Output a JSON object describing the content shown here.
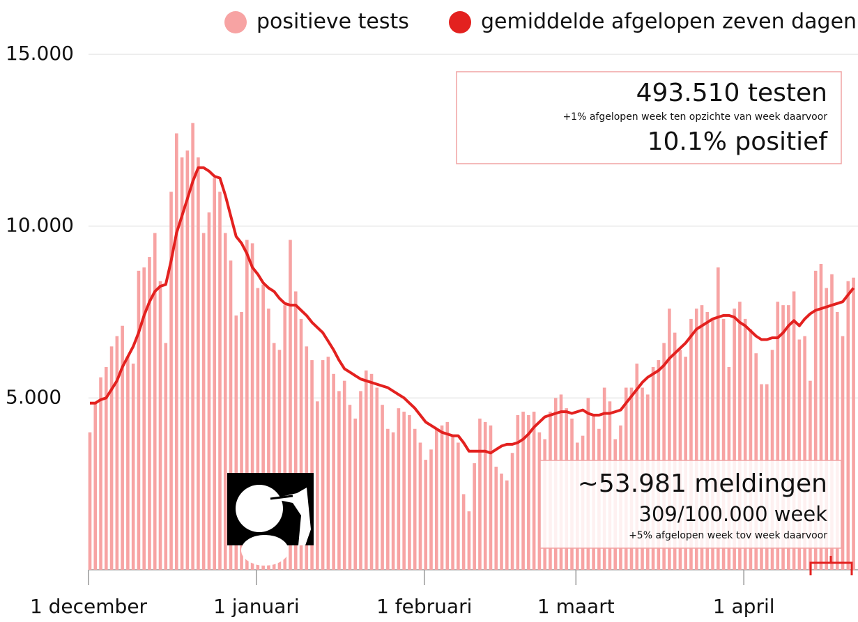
{
  "chart_data": {
    "type": "bar",
    "categories": [
      "1 december",
      null,
      null,
      null,
      null,
      null,
      null,
      null,
      null,
      null,
      null,
      null,
      null,
      null,
      null,
      null,
      null,
      null,
      null,
      null,
      null,
      null,
      null,
      null,
      null,
      null,
      null,
      null,
      null,
      null,
      null,
      "1 januari",
      null,
      null,
      null,
      null,
      null,
      null,
      null,
      null,
      null,
      null,
      null,
      null,
      null,
      null,
      null,
      null,
      null,
      null,
      null,
      null,
      null,
      null,
      null,
      null,
      null,
      null,
      null,
      null,
      null,
      null,
      "1 februari",
      null,
      null,
      null,
      null,
      null,
      null,
      null,
      null,
      null,
      null,
      null,
      null,
      null,
      null,
      null,
      null,
      null,
      null,
      null,
      null,
      null,
      null,
      null,
      null,
      null,
      null,
      null,
      "1 maart",
      null,
      null,
      null,
      null,
      null,
      null,
      null,
      null,
      null,
      null,
      null,
      null,
      null,
      null,
      null,
      null,
      null,
      null,
      null,
      null,
      null,
      null,
      null,
      null,
      null,
      null,
      null,
      null,
      null,
      null,
      "1 april",
      null,
      null,
      null,
      null,
      null,
      null,
      null,
      null,
      null,
      null,
      null,
      null,
      null,
      null,
      null,
      null,
      null,
      null,
      null,
      null
    ],
    "series": [
      {
        "name": "positieve tests",
        "type": "bar",
        "color": "#f7a3a3",
        "values": [
          4000,
          4850,
          5600,
          5900,
          6500,
          6800,
          7100,
          6200,
          6000,
          8700,
          8800,
          9100,
          9800,
          8400,
          6600,
          11000,
          12700,
          12000,
          12200,
          13000,
          12000,
          9800,
          10400,
          11400,
          11000,
          9800,
          9000,
          7400,
          7500,
          9600,
          9500,
          8200,
          8300,
          7600,
          6600,
          6400,
          7700,
          9600,
          8100,
          7300,
          6500,
          6100,
          4900,
          6100,
          6200,
          5700,
          5200,
          5500,
          4800,
          4400,
          5200,
          5800,
          5700,
          5300,
          4800,
          4100,
          4000,
          4700,
          4600,
          4500,
          4100,
          3700,
          3200,
          3500,
          4100,
          4200,
          4300,
          3900,
          3700,
          2200,
          1700,
          3100,
          4400,
          4300,
          4200,
          3000,
          2800,
          2600,
          3400,
          4500,
          4600,
          4500,
          4600,
          4000,
          3800,
          4600,
          5000,
          5100,
          4700,
          4400,
          3700,
          3900,
          5000,
          4500,
          4100,
          5300,
          4900,
          3800,
          4200,
          5300,
          5300,
          6000,
          5300,
          5100,
          5900,
          6100,
          6600,
          7600,
          6900,
          6400,
          6200,
          7300,
          7600,
          7700,
          7500,
          7300,
          8800,
          7300,
          5900,
          7600,
          7800,
          7300,
          7000,
          6300,
          5400,
          5400,
          6400,
          7800,
          7700,
          7700,
          8100,
          6700,
          6800,
          5500,
          8700,
          8900,
          8200,
          8600,
          7500,
          6800,
          8400,
          8500
        ]
      },
      {
        "name": "gemiddelde afgelopen zeven dagen",
        "type": "line",
        "color": "#e3211f",
        "values": [
          4850,
          4850,
          4950,
          5000,
          5250,
          5500,
          5900,
          6200,
          6500,
          6900,
          7400,
          7800,
          8100,
          8250,
          8300,
          9000,
          9800,
          10300,
          10800,
          11300,
          11700,
          11700,
          11600,
          11450,
          11400,
          10900,
          10300,
          9700,
          9500,
          9200,
          8800,
          8600,
          8350,
          8200,
          8100,
          7900,
          7750,
          7700,
          7700,
          7550,
          7400,
          7200,
          7050,
          6900,
          6650,
          6400,
          6100,
          5850,
          5750,
          5650,
          5550,
          5500,
          5450,
          5400,
          5350,
          5300,
          5200,
          5100,
          5000,
          4850,
          4700,
          4500,
          4300,
          4200,
          4100,
          4000,
          3950,
          3900,
          3900,
          3700,
          3450,
          3450,
          3450,
          3450,
          3400,
          3500,
          3600,
          3650,
          3650,
          3700,
          3800,
          3950,
          4150,
          4300,
          4450,
          4500,
          4550,
          4600,
          4600,
          4550,
          4600,
          4650,
          4550,
          4500,
          4500,
          4550,
          4550,
          4600,
          4650,
          4850,
          5050,
          5250,
          5450,
          5600,
          5700,
          5800,
          5950,
          6150,
          6300,
          6450,
          6600,
          6800,
          7000,
          7100,
          7200,
          7300,
          7350,
          7400,
          7400,
          7350,
          7200,
          7100,
          6950,
          6800,
          6700,
          6700,
          6750,
          6750,
          6900,
          7100,
          7250,
          7100,
          7300,
          7450,
          7550,
          7600,
          7650,
          7700,
          7750,
          7800,
          8000,
          8200
        ]
      }
    ],
    "ylim": [
      0,
      15000
    ],
    "yticks": [
      {
        "value": 5000,
        "label": "5.000"
      },
      {
        "value": 10000,
        "label": "10.000"
      },
      {
        "value": 15000,
        "label": "15.000"
      }
    ],
    "grid": true,
    "legend": "top",
    "annotations": [
      "493.510 testen",
      "+1% afgelopen week ten opzichte van week daarvoor",
      "10.1% positief",
      "~53.981 meldingen",
      "309/100.000 week",
      "+5% afgelopen week tov week daarvoor"
    ]
  }
}
